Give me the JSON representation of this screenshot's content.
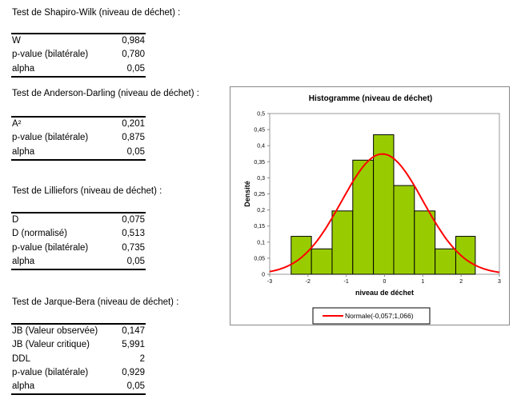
{
  "tests": [
    {
      "title": "Test de Shapiro-Wilk (niveau de déchet) :",
      "rows": [
        {
          "label": "W",
          "value": "0,984"
        },
        {
          "label": "p-value (bilatérale)",
          "value": "0,780"
        },
        {
          "label": "alpha",
          "value": "0,05"
        }
      ]
    },
    {
      "title": "Test de Anderson-Darling (niveau de déchet) :",
      "rows": [
        {
          "label": "A²",
          "value": "0,201"
        },
        {
          "label": "p-value (bilatérale)",
          "value": "0,875"
        },
        {
          "label": "alpha",
          "value": "0,05"
        }
      ]
    },
    {
      "title": "Test de Lilliefors (niveau de déchet) :",
      "rows": [
        {
          "label": "D",
          "value": "0,075"
        },
        {
          "label": "D (normalisé)",
          "value": "0,513"
        },
        {
          "label": "p-value (bilatérale)",
          "value": "0,735"
        },
        {
          "label": "alpha",
          "value": "0,05"
        }
      ]
    },
    {
      "title": "Test de Jarque-Bera (niveau de déchet) :",
      "rows": [
        {
          "label": "JB (Valeur observée)",
          "value": "0,147"
        },
        {
          "label": "JB (Valeur critique)",
          "value": "5,991"
        },
        {
          "label": "DDL",
          "value": "2"
        },
        {
          "label": "p-value (bilatérale)",
          "value": "0,929"
        },
        {
          "label": "alpha",
          "value": "0,05"
        }
      ]
    }
  ],
  "chart_data": {
    "type": "bar",
    "title": "Histogramme  (niveau de déchet)",
    "xlabel": "niveau de déchet",
    "ylabel": "Densité",
    "xlim": [
      -3,
      3
    ],
    "ylim": [
      0,
      0.5
    ],
    "xticks": [
      "-3",
      "-2",
      "-1",
      "0",
      "1",
      "2",
      "3"
    ],
    "yticks": [
      "0",
      "0,05",
      "0,1",
      "0,15",
      "0,2",
      "0,25",
      "0,3",
      "0,35",
      "0,4",
      "0,45",
      "0,5"
    ],
    "bin_edges": [
      -2.44,
      -1.91,
      -1.37,
      -0.83,
      -0.29,
      0.24,
      0.78,
      1.32,
      1.86,
      2.37
    ],
    "values": [
      0.118,
      0.079,
      0.197,
      0.355,
      0.434,
      0.276,
      0.197,
      0.079,
      0.118
    ],
    "bar_color": "#99cc00",
    "normal": {
      "mean": -0.057,
      "sd": 1.066,
      "color": "#ff0000"
    },
    "legend": "Normale(-0,057;1,066)",
    "legend_position": "bottom"
  }
}
